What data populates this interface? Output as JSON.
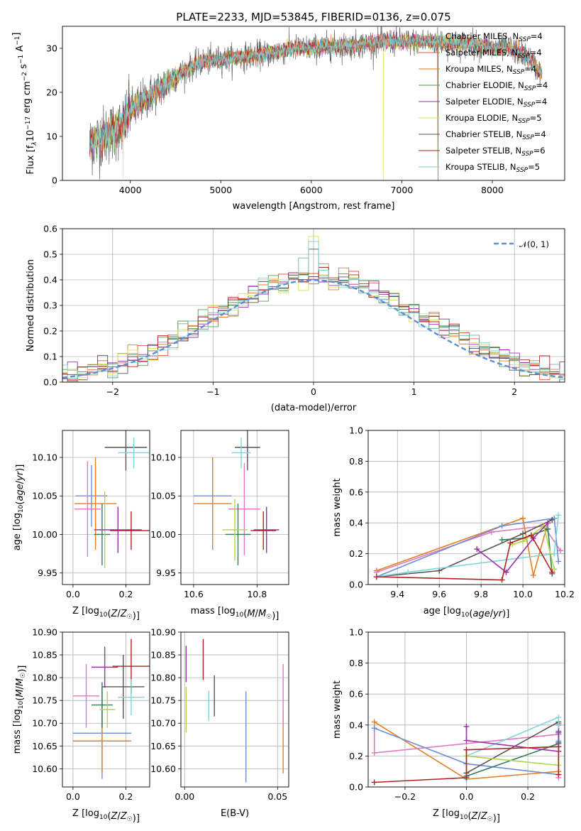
{
  "chart_data": [
    {
      "id": "spectrum",
      "type": "line",
      "title": "PLATE=2233, MJD=53845, FIBERID=0136, z=0.075",
      "xlabel": "wavelength [Angstrom, rest frame]",
      "ylabel_parts": [
        "Flux [f",
        "λ",
        "10",
        "−17",
        " erg cm",
        "−2",
        " s",
        "−1",
        " A",
        "−1",
        "]"
      ],
      "xlim": [
        3250,
        8800
      ],
      "ylim": [
        0,
        35
      ],
      "xticks": [
        4000,
        5000,
        6000,
        7000,
        8000
      ],
      "yticks": [
        0,
        10,
        20,
        30
      ],
      "grid": false,
      "legend_position": "upper-right",
      "continuum": {
        "x": [
          3550,
          3700,
          3900,
          4000,
          4200,
          4400,
          4600,
          4800,
          5000,
          5200,
          5400,
          5600,
          5800,
          6000,
          6200,
          6400,
          6600,
          6800,
          7000,
          7200,
          7400,
          7600,
          7800,
          8000,
          8200,
          8400,
          8550
        ],
        "y": [
          8,
          10,
          12,
          16,
          19,
          22,
          25,
          27,
          27.5,
          28,
          28.5,
          29,
          30,
          30,
          30.5,
          30.5,
          31,
          31.5,
          31.5,
          31.5,
          31.5,
          31,
          31,
          30,
          30,
          28,
          24
        ]
      },
      "series": [
        {
          "name": "Chabrier MILES",
          "nssp": "4"
        },
        {
          "name": "Salpeter MILES",
          "nssp": "4"
        },
        {
          "name": "Kroupa MILES",
          "nssp": "4"
        },
        {
          "name": "Chabrier ELODIE",
          "nssp": "4"
        },
        {
          "name": "Salpeter ELODIE",
          "nssp": "4"
        },
        {
          "name": "Kroupa ELODIE",
          "nssp": "5"
        },
        {
          "name": "Chabrier STELIB",
          "nssp": "4"
        },
        {
          "name": "Salpeter STELIB",
          "nssp": "6"
        },
        {
          "name": "Kroupa STELIB",
          "nssp": "5"
        }
      ],
      "nssp_label": "N",
      "nssp_sub": "SSP"
    },
    {
      "id": "residuals",
      "type": "histogram",
      "xlabel": "(data-model)/error",
      "ylabel": "Normed distribution",
      "xlim": [
        -2.5,
        2.5
      ],
      "ylim": [
        0,
        0.6
      ],
      "xticks": [
        -2,
        -1,
        0,
        1,
        2
      ],
      "xtick_labels": [
        "−2",
        "−1",
        "0",
        "1",
        "2"
      ],
      "yticks": [
        0,
        0.1,
        0.2,
        0.3,
        0.4,
        0.5,
        0.6
      ],
      "ytick_labels": [
        "0.0",
        "0.1",
        "0.2",
        "0.3",
        "0.4",
        "0.5",
        "0.6"
      ],
      "grid": true,
      "bin_width": 0.1,
      "reference_legend": "𝒩(0, 1)",
      "legend_position": "upper-right"
    },
    {
      "id": "age-vs-z",
      "type": "errorbar",
      "xlabel": "Z [log",
      "xlabel_sub": "10",
      "xlabel_tail": "(Z/Z",
      "xlabel_end": ")]",
      "ylabel": "age  [log",
      "ylabel_sub": "10",
      "ylabel_tail": "(age/yr)]",
      "xlim": [
        -0.04,
        0.29
      ],
      "ylim": [
        9.935,
        10.135
      ],
      "xticks": [
        0.0,
        0.2
      ],
      "xtick_labels": [
        "0.0",
        "0.2"
      ],
      "yticks": [
        9.95,
        10.0,
        10.05,
        10.1
      ],
      "ytick_labels": [
        "9.95",
        "10.00",
        "10.05",
        "10.10"
      ],
      "grid": true,
      "points": [
        {
          "x": 0.07,
          "y": 10.05,
          "xerr": 0.06,
          "yerr": 0.04,
          "color": "#6b8fd6"
        },
        {
          "x": 0.085,
          "y": 10.04,
          "xerr": 0.08,
          "yerr": 0.06,
          "color": "#e67e22"
        },
        {
          "x": 0.055,
          "y": 10.033,
          "xerr": 0.05,
          "yerr": 0.062,
          "color": "#e377c2"
        },
        {
          "x": 0.11,
          "y": 10.0,
          "xerr": 0.03,
          "yerr": 0.04,
          "color": "#2e7d55"
        },
        {
          "x": 0.12,
          "y": 10.006,
          "xerr": 0.04,
          "yerr": 0.05,
          "color": "#b5d44a"
        },
        {
          "x": 0.17,
          "y": 10.006,
          "xerr": 0.09,
          "yerr": 0.03,
          "color": "#9b2fae"
        },
        {
          "x": 0.2,
          "y": 10.113,
          "xerr": 0.08,
          "yerr": 0.03,
          "color": "#555555"
        },
        {
          "x": 0.22,
          "y": 10.005,
          "xerr": 0.08,
          "yerr": 0.025,
          "color": "#b22222"
        },
        {
          "x": 0.23,
          "y": 10.106,
          "xerr": 0.06,
          "yerr": 0.02,
          "color": "#7fd6d6"
        }
      ]
    },
    {
      "id": "age-vs-mass",
      "type": "errorbar",
      "xlabel": "mass [log",
      "xlabel_sub": "10",
      "xlabel_tail": "(M/M",
      "xlabel_end": ")]",
      "ylabel": "",
      "xlim": [
        10.56,
        10.9
      ],
      "ylim": [
        9.935,
        10.135
      ],
      "xticks": [
        10.6,
        10.8
      ],
      "xtick_labels": [
        "10.6",
        "10.8"
      ],
      "yticks": [
        9.95,
        10.0,
        10.05,
        10.1
      ],
      "ytick_labels": [
        "9.95",
        "10.00",
        "10.05",
        "10.10"
      ],
      "grid": true,
      "points": [
        {
          "x": 10.66,
          "y": 10.05,
          "xerr": 0.06,
          "yerr": 0.05,
          "color": "#6b8fd6"
        },
        {
          "x": 10.66,
          "y": 10.04,
          "xerr": 0.06,
          "yerr": 0.06,
          "color": "#e67e22"
        },
        {
          "x": 10.76,
          "y": 10.033,
          "xerr": 0.05,
          "yerr": 0.06,
          "color": "#e377c2"
        },
        {
          "x": 10.74,
          "y": 10.0,
          "xerr": 0.04,
          "yerr": 0.04,
          "color": "#2e7d55"
        },
        {
          "x": 10.73,
          "y": 10.006,
          "xerr": 0.04,
          "yerr": 0.04,
          "color": "#b5d44a"
        },
        {
          "x": 10.83,
          "y": 10.006,
          "xerr": 0.04,
          "yerr": 0.03,
          "color": "#9b2fae"
        },
        {
          "x": 10.77,
          "y": 10.113,
          "xerr": 0.04,
          "yerr": 0.03,
          "color": "#555555"
        },
        {
          "x": 10.82,
          "y": 10.005,
          "xerr": 0.04,
          "yerr": 0.025,
          "color": "#b22222"
        },
        {
          "x": 10.75,
          "y": 10.106,
          "xerr": 0.03,
          "yerr": 0.02,
          "color": "#7fd6d6"
        }
      ]
    },
    {
      "id": "weight-vs-age",
      "type": "line",
      "xlabel": "age  [log",
      "xlabel_sub": "10",
      "xlabel_tail": "(age/yr)]",
      "ylabel": "mass weight",
      "xlim": [
        9.26,
        10.2
      ],
      "ylim": [
        0,
        1
      ],
      "xticks": [
        9.4,
        9.6,
        9.8,
        10.0,
        10.2
      ],
      "xtick_labels": [
        "9.4",
        "9.6",
        "9.8",
        "10.0",
        "10.2"
      ],
      "yticks": [
        0,
        0.2,
        0.4,
        0.6,
        0.8,
        1.0
      ],
      "ytick_labels": [
        "0.0",
        "0.2",
        "0.4",
        "0.6",
        "0.8",
        "1.0"
      ],
      "grid": true,
      "series": [
        {
          "color": "#e67e22",
          "x": [
            9.3,
            10.0,
            10.05,
            10.12
          ],
          "y": [
            0.09,
            0.43,
            0.06,
            0.4
          ]
        },
        {
          "color": "#e377c2",
          "x": [
            9.3,
            9.85,
            10.1,
            10.18
          ],
          "y": [
            0.08,
            0.34,
            0.38,
            0.22
          ]
        },
        {
          "color": "#6b8fd6",
          "x": [
            9.3,
            9.9,
            10.15,
            10.17
          ],
          "y": [
            0.05,
            0.38,
            0.43,
            0.15
          ]
        },
        {
          "color": "#555555",
          "x": [
            9.3,
            9.6,
            10.0,
            10.14
          ],
          "y": [
            0.05,
            0.09,
            0.33,
            0.42
          ]
        },
        {
          "color": "#7fd6d6",
          "x": [
            9.3,
            9.45,
            10.15,
            10.17
          ],
          "y": [
            0.05,
            0.08,
            0.2,
            0.45
          ]
        },
        {
          "color": "#2e7d55",
          "x": [
            9.9,
            10.0,
            10.12,
            10.14
          ],
          "y": [
            0.29,
            0.3,
            0.36,
            0.07
          ]
        },
        {
          "color": "#b5d44a",
          "x": [
            9.95,
            10.0,
            10.1,
            10.15
          ],
          "y": [
            0.26,
            0.28,
            0.38,
            0.1
          ]
        },
        {
          "color": "#9b2fae",
          "x": [
            9.78,
            9.92,
            10.05,
            10.12
          ],
          "y": [
            0.23,
            0.08,
            0.3,
            0.4
          ]
        },
        {
          "color": "#b22222",
          "x": [
            9.3,
            9.9,
            9.94,
            10.04,
            10.14
          ],
          "y": [
            0.05,
            0.03,
            0.27,
            0.32,
            0.08
          ]
        }
      ]
    },
    {
      "id": "mass-vs-z",
      "type": "errorbar",
      "xlabel": "Z [log",
      "xlabel_sub": "10",
      "xlabel_tail": "(Z/Z",
      "xlabel_end": ")]",
      "ylabel": "mass [log",
      "ylabel_sub": "10",
      "ylabel_tail": "(M/M",
      "ylabel_end": ")]",
      "xlim": [
        -0.04,
        0.29
      ],
      "ylim": [
        10.56,
        10.9
      ],
      "xticks": [
        0.0,
        0.2
      ],
      "xtick_labels": [
        "0.0",
        "0.2"
      ],
      "yticks": [
        10.6,
        10.65,
        10.7,
        10.75,
        10.8,
        10.85,
        10.9
      ],
      "ytick_labels": [
        "10.60",
        "10.65",
        "10.70",
        "10.75",
        "10.80",
        "10.85",
        "10.90"
      ],
      "grid": true,
      "points": [
        {
          "x": 0.11,
          "y": 10.678,
          "xerr": 0.11,
          "yerr": 0.1,
          "color": "#6b8fd6"
        },
        {
          "x": 0.11,
          "y": 10.661,
          "xerr": 0.11,
          "yerr": 0.07,
          "color": "#e67e22"
        },
        {
          "x": 0.05,
          "y": 10.76,
          "xerr": 0.05,
          "yerr": 0.07,
          "color": "#e377c2"
        },
        {
          "x": 0.11,
          "y": 10.74,
          "xerr": 0.04,
          "yerr": 0.05,
          "color": "#2e7d55"
        },
        {
          "x": 0.13,
          "y": 10.73,
          "xerr": 0.03,
          "yerr": 0.04,
          "color": "#b5d44a"
        },
        {
          "x": 0.12,
          "y": 10.823,
          "xerr": 0.05,
          "yerr": 0.045,
          "color": "#9b2fae"
        },
        {
          "x": 0.19,
          "y": 10.78,
          "xerr": 0.08,
          "yerr": 0.07,
          "color": "#555555"
        },
        {
          "x": 0.22,
          "y": 10.825,
          "xerr": 0.07,
          "yerr": 0.06,
          "color": "#b22222"
        },
        {
          "x": 0.22,
          "y": 10.757,
          "xerr": 0.05,
          "yerr": 0.04,
          "color": "#7fd6d6"
        }
      ]
    },
    {
      "id": "mass-vs-ebv",
      "type": "errorbar",
      "xlabel": "E(B-V)",
      "ylabel": "",
      "xlim": [
        -0.002,
        0.056
      ],
      "ylim": [
        10.56,
        10.9
      ],
      "xticks": [
        0.0,
        0.05
      ],
      "xtick_labels": [
        "0.00",
        "0.05"
      ],
      "yticks": [
        10.6,
        10.65,
        10.7,
        10.75,
        10.8,
        10.85,
        10.9
      ],
      "ytick_labels": [
        "10.60",
        "10.65",
        "10.70",
        "10.75",
        "10.80",
        "10.85",
        "10.90"
      ],
      "grid": true,
      "points": [
        {
          "x": 0.0008,
          "y": 10.83,
          "yerr": 0.04,
          "color": "#9b2fae"
        },
        {
          "x": 0.0008,
          "y": 10.73,
          "yerr": 0.05,
          "color": "#b5d44a"
        },
        {
          "x": 0.01,
          "y": 10.84,
          "yerr": 0.045,
          "color": "#b22222"
        },
        {
          "x": 0.013,
          "y": 10.738,
          "yerr": 0.033,
          "color": "#7fd6d6"
        },
        {
          "x": 0.016,
          "y": 10.76,
          "yerr": 0.045,
          "color": "#555555"
        },
        {
          "x": 0.033,
          "y": 10.67,
          "yerr": 0.1,
          "color": "#6b8fd6"
        },
        {
          "x": 0.053,
          "y": 10.66,
          "yerr": 0.07,
          "color": "#e67e22"
        },
        {
          "x": 0.053,
          "y": 10.76,
          "yerr": 0.07,
          "color": "#e377c2"
        }
      ]
    },
    {
      "id": "weight-vs-z",
      "type": "line",
      "xlabel": "Z [log",
      "xlabel_sub": "10",
      "xlabel_tail": "(Z/Z",
      "xlabel_end": ")]",
      "ylabel": "mass weight",
      "xlim": [
        -0.32,
        0.32
      ],
      "ylim": [
        0,
        1
      ],
      "xticks": [
        -0.2,
        0.0,
        0.2
      ],
      "xtick_labels": [
        "−0.2",
        "0.0",
        "0.2"
      ],
      "yticks": [
        0,
        0.2,
        0.4,
        0.6,
        0.8,
        1.0
      ],
      "ytick_labels": [
        "0.0",
        "0.2",
        "0.4",
        "0.6",
        "0.8",
        "1.0"
      ],
      "grid": true,
      "series": [
        {
          "color": "#e67e22",
          "x": [
            -0.3,
            0.0,
            0.3,
            0.3
          ],
          "y": [
            0.42,
            0.05,
            0.1,
            0.41
          ]
        },
        {
          "color": "#e377c2",
          "x": [
            -0.3,
            -0.3,
            0.3,
            0.3
          ],
          "y": [
            0.38,
            0.22,
            0.34,
            0.06
          ]
        },
        {
          "color": "#6b8fd6",
          "x": [
            -0.3,
            0.0,
            0.3,
            0.3
          ],
          "y": [
            0.38,
            0.15,
            0.08,
            0.4
          ]
        },
        {
          "color": "#555555",
          "x": [
            0.0,
            0.3,
            0.3
          ],
          "y": [
            0.09,
            0.42,
            0.29
          ]
        },
        {
          "color": "#7fd6d6",
          "x": [
            0.0,
            0.0,
            0.3,
            0.3
          ],
          "y": [
            0.05,
            0.2,
            0.45,
            0.3
          ]
        },
        {
          "color": "#2e7d55",
          "x": [
            0.0,
            0.3,
            0.3
          ],
          "y": [
            0.07,
            0.28,
            0.35
          ]
        },
        {
          "color": "#b5d44a",
          "x": [
            0.0,
            0.3,
            0.3
          ],
          "y": [
            0.2,
            0.14,
            0.26
          ]
        },
        {
          "color": "#9b2fae",
          "x": [
            0.0,
            0.0,
            0.3,
            0.3
          ],
          "y": [
            0.39,
            0.3,
            0.23,
            0.36
          ]
        },
        {
          "color": "#b22222",
          "x": [
            -0.3,
            0.0,
            0.0,
            0.3,
            0.3
          ],
          "y": [
            0.03,
            0.06,
            0.24,
            0.26,
            0.08
          ]
        }
      ]
    }
  ],
  "colors": {
    "spectrum": [
      "#6fb0a0",
      "#e4594a",
      "#e67e22",
      "#5a9a55",
      "#9b2fae",
      "#d9e05a",
      "#555555",
      "#b22222",
      "#7fd6d6"
    ],
    "normal_curve": "#5b8fd6"
  }
}
